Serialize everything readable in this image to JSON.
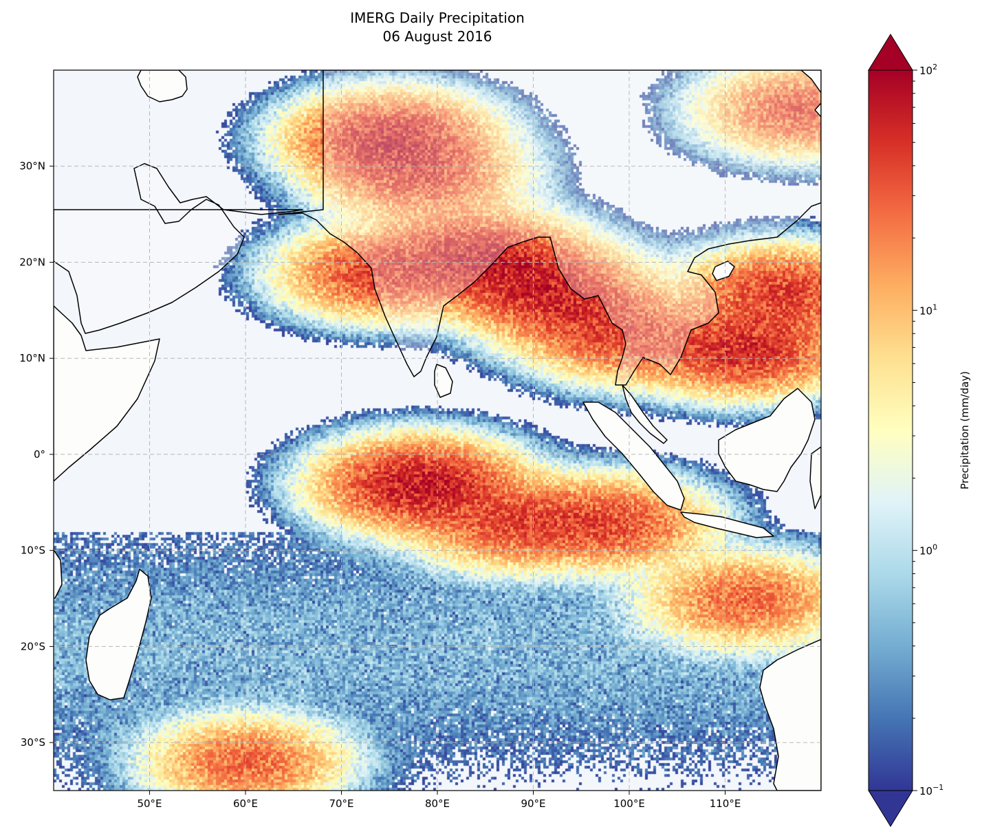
{
  "title": {
    "line1": "IMERG Daily Precipitation",
    "line2": "06 August 2016"
  },
  "map": {
    "lon_range": [
      40,
      120
    ],
    "lat_range": [
      -35,
      40
    ],
    "lon_ticks": [
      {
        "value": 50,
        "label": "50°E"
      },
      {
        "value": 60,
        "label": "60°E"
      },
      {
        "value": 70,
        "label": "70°E"
      },
      {
        "value": 80,
        "label": "80°E"
      },
      {
        "value": 90,
        "label": "90°E"
      },
      {
        "value": 100,
        "label": "100°E"
      },
      {
        "value": 110,
        "label": "110°E"
      }
    ],
    "lat_ticks": [
      {
        "value": 30,
        "label": "30°N"
      },
      {
        "value": 20,
        "label": "20°N"
      },
      {
        "value": 10,
        "label": "10°N"
      },
      {
        "value": 0,
        "label": "0°"
      },
      {
        "value": -10,
        "label": "10°S"
      },
      {
        "value": -20,
        "label": "20°S"
      },
      {
        "value": -30,
        "label": "30°S"
      }
    ],
    "gridlines": true,
    "ocean_color": "#f3f6fb",
    "land_color": "#fdfdfb"
  },
  "colorbar": {
    "label": "Precipitation (mm/day)",
    "scale": "log",
    "range": [
      0.1,
      100
    ],
    "extend": "both",
    "colormap": "RdYlBu_r",
    "ticks": [
      {
        "value": 100,
        "base": "10",
        "exp": "2"
      },
      {
        "value": 10,
        "base": "10",
        "exp": "1"
      },
      {
        "value": 1,
        "base": "10",
        "exp": "0"
      },
      {
        "value": 0.1,
        "base": "10",
        "exp": "−1"
      }
    ],
    "colors": [
      "#313695",
      "#4575b4",
      "#74add1",
      "#abd9e9",
      "#e0f3f8",
      "#ffffbf",
      "#fee090",
      "#fdae61",
      "#f46d43",
      "#d73027",
      "#a50026"
    ]
  },
  "rain_bands": [
    {
      "lon": 74,
      "lat": 19,
      "peak": 45
    },
    {
      "lon": 84,
      "lat": 21,
      "peak": 60
    },
    {
      "lon": 90,
      "lat": 18,
      "peak": 55
    },
    {
      "lon": 95,
      "lat": 15,
      "peak": 40
    },
    {
      "lon": 75,
      "lat": 33,
      "peak": 70
    },
    {
      "lon": 78,
      "lat": 29,
      "peak": 40
    },
    {
      "lon": 100,
      "lat": 12,
      "peak": 30
    },
    {
      "lon": 112,
      "lat": 11,
      "peak": 60
    },
    {
      "lon": 116,
      "lat": 17,
      "peak": 50
    },
    {
      "lon": 118,
      "lat": 36,
      "peak": 40
    },
    {
      "lon": 78,
      "lat": -3,
      "peak": 80
    },
    {
      "lon": 88,
      "lat": -7,
      "peak": 40
    },
    {
      "lon": 98,
      "lat": -7,
      "peak": 40
    },
    {
      "lon": 112,
      "lat": -15,
      "peak": 30
    },
    {
      "lon": 60,
      "lat": -32,
      "peak": 30
    }
  ]
}
